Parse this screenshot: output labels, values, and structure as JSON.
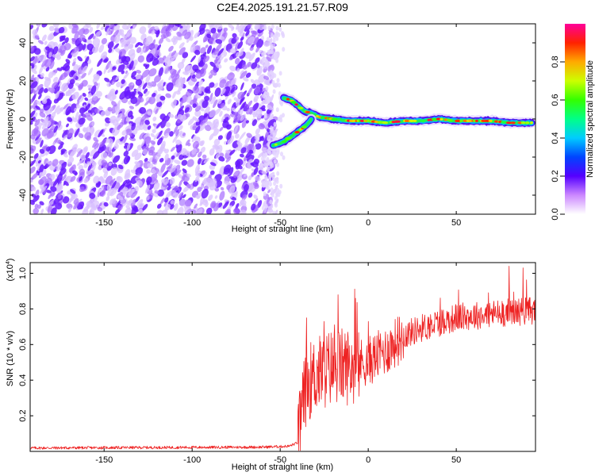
{
  "title": "C2E4.2025.191.21.57.R09",
  "chart_data": [
    {
      "type": "heatmap",
      "name": "spectrogram",
      "xlabel": "Height of straight line (km)",
      "ylabel": "Frequency (Hz)",
      "xlim": [
        -192,
        95
      ],
      "ylim": [
        -50,
        50
      ],
      "xticks": [
        -150,
        -100,
        -50,
        0,
        50
      ],
      "yticks": [
        -40,
        -20,
        0,
        20,
        40
      ],
      "colorbar": {
        "label": "Normalized spectral amplitude",
        "range": [
          0,
          1
        ],
        "ticks": [
          "0.0",
          "0.2",
          "0.4",
          "0.6",
          "0.8"
        ],
        "tick_values": [
          0.0,
          0.2,
          0.4,
          0.6,
          0.8
        ]
      },
      "features": {
        "noise_region_x": [
          -192,
          -52
        ],
        "noise_amplitude_range": [
          0.0,
          0.2
        ],
        "branch_start": {
          "x": -53,
          "y_upper": 11,
          "y_lower": -14
        },
        "merge_point": {
          "x": -30,
          "y": 2
        },
        "ridge": [
          [
            -48,
            11
          ],
          [
            -44,
            10
          ],
          [
            -40,
            7
          ],
          [
            -36,
            4
          ],
          [
            -32,
            3
          ],
          [
            -28,
            1
          ],
          [
            -20,
            0
          ],
          [
            -10,
            -1
          ],
          [
            0,
            -1
          ],
          [
            10,
            -2
          ],
          [
            20,
            -1
          ],
          [
            30,
            -1
          ],
          [
            40,
            0
          ],
          [
            50,
            -1
          ],
          [
            60,
            -1
          ],
          [
            70,
            -1
          ],
          [
            80,
            -2
          ],
          [
            93,
            -2
          ]
        ],
        "lower_branch": [
          [
            -54,
            -14
          ],
          [
            -48,
            -12
          ],
          [
            -42,
            -8
          ],
          [
            -36,
            -4
          ],
          [
            -32,
            0
          ]
        ],
        "ridge_peak_amplitude": 0.9
      }
    },
    {
      "type": "line",
      "name": "snr",
      "xlabel": "Height of straight line (km)",
      "ylabel": "SNR (10 * v/v)",
      "y_multiplier": "(x10^4)",
      "xlim": [
        -192,
        95
      ],
      "ylim": [
        0,
        1.06
      ],
      "xticks": [
        -150,
        -100,
        -50,
        0,
        50
      ],
      "yticks": [
        0.2,
        0.4,
        0.6,
        0.8,
        1.0
      ],
      "color": "#ee2222",
      "profile": [
        [
          -192,
          0.02
        ],
        [
          -60,
          0.025
        ],
        [
          -45,
          0.03
        ],
        [
          -40,
          0.05
        ],
        [
          -38,
          0.25
        ],
        [
          -35,
          0.4
        ],
        [
          -30,
          0.45
        ],
        [
          -20,
          0.5
        ],
        [
          -10,
          0.5
        ],
        [
          0,
          0.52
        ],
        [
          10,
          0.58
        ],
        [
          20,
          0.66
        ],
        [
          30,
          0.7
        ],
        [
          40,
          0.73
        ],
        [
          50,
          0.76
        ],
        [
          60,
          0.77
        ],
        [
          70,
          0.78
        ],
        [
          80,
          0.79
        ],
        [
          95,
          0.8
        ]
      ],
      "peaks": [
        {
          "x": -35,
          "y": 0.75
        },
        {
          "x": -25,
          "y": 0.73
        },
        {
          "x": 0,
          "y": 0.73
        },
        {
          "x": 80,
          "y": 1.04
        },
        {
          "x": 88,
          "y": 1.03
        }
      ]
    }
  ]
}
